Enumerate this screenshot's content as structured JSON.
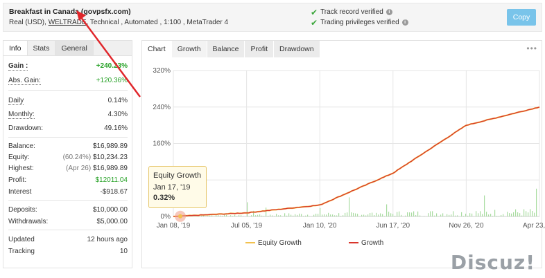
{
  "header": {
    "title": "Breakfast in Canada (govpsfx.com)",
    "sub_prefix": "Real (USD), ",
    "broker": "WELTRADE",
    "sub_suffix": ", Technical , Automated , 1:100 , MetaTrader 4",
    "track_record": "Track record verified",
    "trading_privileges": "Trading privileges verified",
    "copy_label": "Copy"
  },
  "left_tabs": [
    "Info",
    "Stats",
    "General"
  ],
  "stats": {
    "gain_label": "Gain :",
    "gain_value": "+240.23%",
    "abs_gain_label": "Abs. Gain:",
    "abs_gain_value": "+120.36%",
    "daily_label": "Daily",
    "daily_value": "0.14%",
    "monthly_label": "Monthly:",
    "monthly_value": "4.30%",
    "drawdown_label": "Drawdown:",
    "drawdown_value": "49.16%",
    "balance_label": "Balance:",
    "balance_value": "$16,989.89",
    "equity_label": "Equity:",
    "equity_paren": "(60.24%)",
    "equity_value": "$10,234.23",
    "highest_label": "Highest:",
    "highest_paren": "(Apr 26)",
    "highest_value": "$16,989.89",
    "profit_label": "Profit:",
    "profit_value": "$12011.04",
    "interest_label": "Interest",
    "interest_value": "-$918.67",
    "deposits_label": "Deposits:",
    "deposits_value": "$10,000.00",
    "withdrawals_label": "Withdrawals:",
    "withdrawals_value": "$5,000.00",
    "updated_label": "Updated",
    "updated_value": "12 hours ago",
    "tracking_label": "Tracking",
    "tracking_value": "10"
  },
  "chart_tabs": [
    "Chart",
    "Growth",
    "Balance",
    "Profit",
    "Drawdown"
  ],
  "more_icon": "more-dots-icon",
  "tooltip": {
    "title": "Equity Growth",
    "date": "Jan 17, '19",
    "value": "0.32%"
  },
  "chart_data": {
    "type": "line",
    "title": "",
    "y_ticks": [
      "320%",
      "240%",
      "160%",
      "80%",
      "0%"
    ],
    "x_ticks": [
      "Jan 08, '19",
      "Jul 05, '19",
      "Jan 10, '20",
      "Jun 17, '20",
      "Nov 26, '20",
      "Apr 23, '21"
    ],
    "ylim": [
      0,
      320
    ],
    "grid": true,
    "legend_position": "bottom",
    "colors": {
      "growth": "#d9362b",
      "equity": "#f2c14e",
      "bars": "#a8dca0"
    },
    "series": [
      {
        "name": "Equity Growth",
        "x": [
          "Jan 08, '19",
          "Jul 05, '19",
          "Jan 10, '20",
          "Jun 17, '20",
          "Nov 26, '20",
          "Apr 23, '21"
        ],
        "values": [
          0,
          8,
          25,
          95,
          200,
          240
        ]
      },
      {
        "name": "Growth",
        "x": [
          "Jan 08, '19",
          "Jul 05, '19",
          "Jan 10, '20",
          "Jun 17, '20",
          "Nov 26, '20",
          "Apr 23, '21"
        ],
        "values": [
          0,
          8,
          25,
          95,
          200,
          240
        ]
      }
    ]
  },
  "watermark": "Discuz!"
}
